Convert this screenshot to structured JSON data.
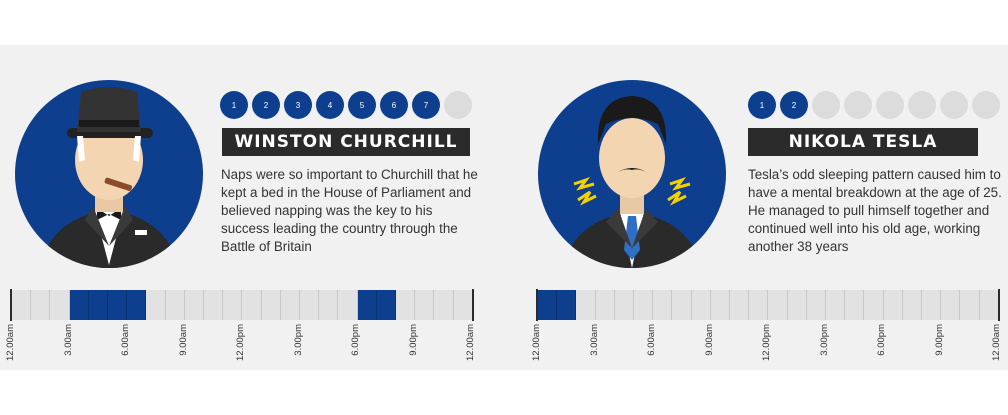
{
  "people": [
    {
      "id": "churchill",
      "name": "WINSTON CHURCHILL",
      "sleep_dots": {
        "filled": [
          1,
          2,
          3,
          4,
          5,
          6,
          7
        ],
        "total": 8
      },
      "bio": "Naps were so important to Churchill that he kept a bed in the House of Parliament and believed napping was the key to his success leading the country through the Battle of Britain",
      "timeline": {
        "segments": 24,
        "asleep_hours": [
          3,
          4,
          5,
          6,
          18,
          19
        ]
      },
      "ticks": [
        "12.00am",
        "3.00am",
        "6.00am",
        "9.00am",
        "12.00pm",
        "3.00pm",
        "6.00pm",
        "9.00pm",
        "12.00am"
      ]
    },
    {
      "id": "tesla",
      "name": "NIKOLA TESLA",
      "sleep_dots": {
        "filled": [
          1,
          2
        ],
        "total": 8
      },
      "bio": "Tesla’s odd sleeping pattern caused him to have a mental breakdown at the age of 25. He managed to pull himself together and continued well into his old age, working another 38 years",
      "timeline": {
        "segments": 24,
        "asleep_hours": [
          0,
          1
        ]
      },
      "ticks": [
        "12.00am",
        "3.00am",
        "6.00am",
        "9.00am",
        "12.00pm",
        "3.00pm",
        "6.00pm",
        "9.00pm",
        "12.00am"
      ]
    }
  ],
  "colors": {
    "accent": "#0e3f8f",
    "empty": "#dcdcdd",
    "dark": "#2b2b2b"
  }
}
